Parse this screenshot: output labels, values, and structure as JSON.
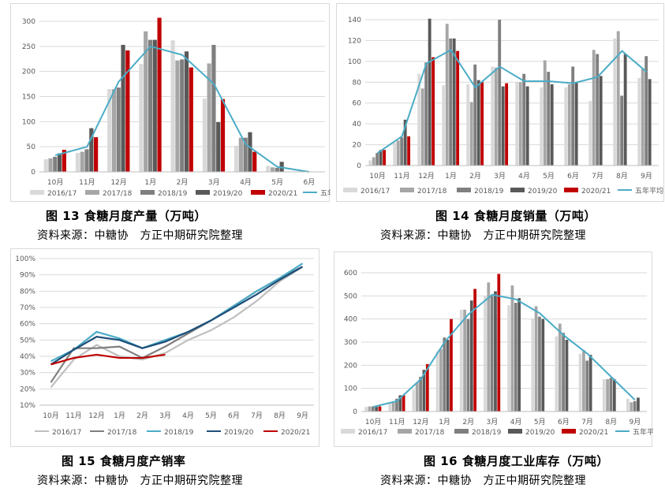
{
  "figures": [
    {
      "title": "图 13 食糖月度产量（万吨）",
      "source": "资料来源：中糖协　方正中期研究院整理",
      "chart_data": {
        "type": "bar",
        "categories": [
          "10月",
          "11月",
          "12月",
          "1月",
          "2月",
          "3月",
          "4月",
          "5月",
          "6月"
        ],
        "ylim": [
          0,
          300
        ],
        "yticks": [
          0,
          50,
          100,
          150,
          200,
          250,
          300
        ],
        "series": [
          {
            "name": "2016/17",
            "color": "#d9d9d9",
            "values": [
              25,
              38,
              165,
              215,
              262,
              146,
              52,
              12,
              0
            ]
          },
          {
            "name": "2017/18",
            "color": "#a6a6a6",
            "values": [
              27,
              40,
              165,
              280,
              222,
              216,
              68,
              9,
              0
            ]
          },
          {
            "name": "2018/19",
            "color": "#7f7f7f",
            "values": [
              30,
              45,
              168,
              263,
              224,
              253,
              68,
              8,
              0
            ]
          },
          {
            "name": "2019/20",
            "color": "#595959",
            "values": [
              37,
              87,
              253,
              263,
              240,
              99,
              79,
              20,
              0
            ]
          },
          {
            "name": "2020/21",
            "color": "#c00000",
            "values": [
              44,
              69,
              242,
              307,
              208,
              145,
              40,
              null,
              null
            ]
          }
        ],
        "lines": [
          {
            "name": "五年平均",
            "color": "#4bacc6",
            "values": [
              33,
              50,
              180,
              250,
              233,
              175,
              55,
              10,
              0
            ]
          }
        ]
      }
    },
    {
      "title": "图 14 食糖月度销量（万吨）",
      "source": "资料来源：中糖协　方正中期研究院整理",
      "chart_data": {
        "type": "bar",
        "categories": [
          "10月",
          "11月",
          "12月",
          "1月",
          "2月",
          "3月",
          "4月",
          "5月",
          "6月",
          "7月",
          "8月",
          "9月"
        ],
        "ylim": [
          0,
          140
        ],
        "yticks": [
          0,
          20,
          40,
          60,
          80,
          100,
          120,
          140
        ],
        "series": [
          {
            "name": "2016/17",
            "color": "#d9d9d9",
            "values": [
              5,
              22,
              88,
              77,
              78,
              95,
              80,
              75,
              75,
              62,
              122,
              84
            ]
          },
          {
            "name": "2017/18",
            "color": "#a6a6a6",
            "values": [
              8,
              24,
              74,
              136,
              61,
              94,
              80,
              101,
              78,
              111,
              129,
              93
            ]
          },
          {
            "name": "2018/19",
            "color": "#7f7f7f",
            "values": [
              12,
              27,
              99,
              122,
              97,
              140,
              88,
              90,
              95,
              107,
              67,
              105
            ]
          },
          {
            "name": "2019/20",
            "color": "#595959",
            "values": [
              15,
              44,
              141,
              122,
              82,
              76,
              76,
              78,
              80,
              86,
              107,
              83
            ]
          },
          {
            "name": "2020/21",
            "color": "#c00000",
            "values": [
              15,
              28,
              104,
              110,
              80,
              79,
              null,
              null,
              null,
              null,
              null,
              null
            ]
          }
        ],
        "lines": [
          {
            "name": "五年平均",
            "color": "#4bacc6",
            "values": [
              12,
              28,
              98,
              111,
              75,
              95,
              81,
              81,
              79,
              85,
              110,
              90
            ]
          }
        ]
      }
    },
    {
      "title": "图 15 食糖月度产销率",
      "source": "资料来源：中糖协　方正中期研究院整理",
      "chart_data": {
        "type": "line",
        "categories": [
          "10月",
          "11月",
          "12月",
          "1月",
          "2月",
          "3月",
          "4月",
          "5月",
          "6月",
          "7月",
          "8月",
          "9月"
        ],
        "ylim": [
          10,
          100
        ],
        "yticks": [
          10,
          20,
          30,
          40,
          50,
          60,
          70,
          80,
          90,
          100
        ],
        "yformat": "percent",
        "series": [
          {
            "name": "2016/17",
            "color": "#bfbfbf",
            "values": [
              21,
              38,
              47,
              40,
              38,
              42,
              50,
              56,
              64,
              74,
              86,
              95
            ]
          },
          {
            "name": "2017/18",
            "color": "#7f7f7f",
            "values": [
              24,
              45,
              45,
              46,
              39,
              46,
              54,
              62,
              71,
              80,
              88,
              95
            ]
          },
          {
            "name": "2018/19",
            "color": "#4bacc6",
            "values": [
              37,
              44,
              55,
              51,
              45,
              50,
              55,
              62,
              71,
              80,
              88,
              97
            ]
          },
          {
            "name": "2019/20",
            "color": "#1f4e79",
            "values": [
              35,
              44,
              52,
              50,
              45,
              49,
              55,
              62,
              70,
              78,
              87,
              95
            ]
          },
          {
            "name": "2020/21",
            "color": "#c00000",
            "values": [
              35,
              39,
              41,
              39,
              39,
              41,
              null,
              null,
              null,
              null,
              null,
              null
            ]
          }
        ]
      }
    },
    {
      "title": "图 16 食糖月度工业库存（万吨）",
      "source": "资料来源：中糖协　方正中期研究院整理",
      "chart_data": {
        "type": "bar",
        "categories": [
          "10月",
          "11月",
          "12月",
          "1月",
          "2月",
          "3月",
          "4月",
          "5月",
          "6月",
          "7月",
          "8月",
          "9月"
        ],
        "ylim": [
          0,
          600
        ],
        "yticks": [
          0,
          100,
          200,
          300,
          400,
          500,
          600
        ],
        "series": [
          {
            "name": "2016/17",
            "color": "#d9d9d9",
            "values": [
              20,
              35,
              95,
              260,
              440,
              500,
              460,
              400,
              325,
              250,
              140,
              55
            ]
          },
          {
            "name": "2017/18",
            "color": "#a6a6a6",
            "values": [
              22,
              40,
              125,
              270,
              440,
              558,
              545,
              455,
              380,
              265,
              140,
              40
            ]
          },
          {
            "name": "2018/19",
            "color": "#7f7f7f",
            "values": [
              22,
              55,
              150,
              320,
              400,
              500,
              470,
              410,
              340,
              220,
              145,
              45
            ]
          },
          {
            "name": "2019/20",
            "color": "#595959",
            "values": [
              20,
              70,
              180,
              310,
              480,
              520,
              490,
              400,
              310,
              245,
              140,
              60
            ]
          },
          {
            "name": "2020/21",
            "color": "#c00000",
            "values": [
              22,
              70,
              205,
              400,
              530,
              595,
              null,
              null,
              null,
              null,
              null,
              null
            ]
          }
        ],
        "lines": [
          {
            "name": "五年平均",
            "color": "#4bacc6",
            "values": [
              20,
              45,
              140,
              300,
              420,
              505,
              485,
              425,
              330,
              250,
              150,
              50
            ]
          }
        ]
      }
    }
  ]
}
